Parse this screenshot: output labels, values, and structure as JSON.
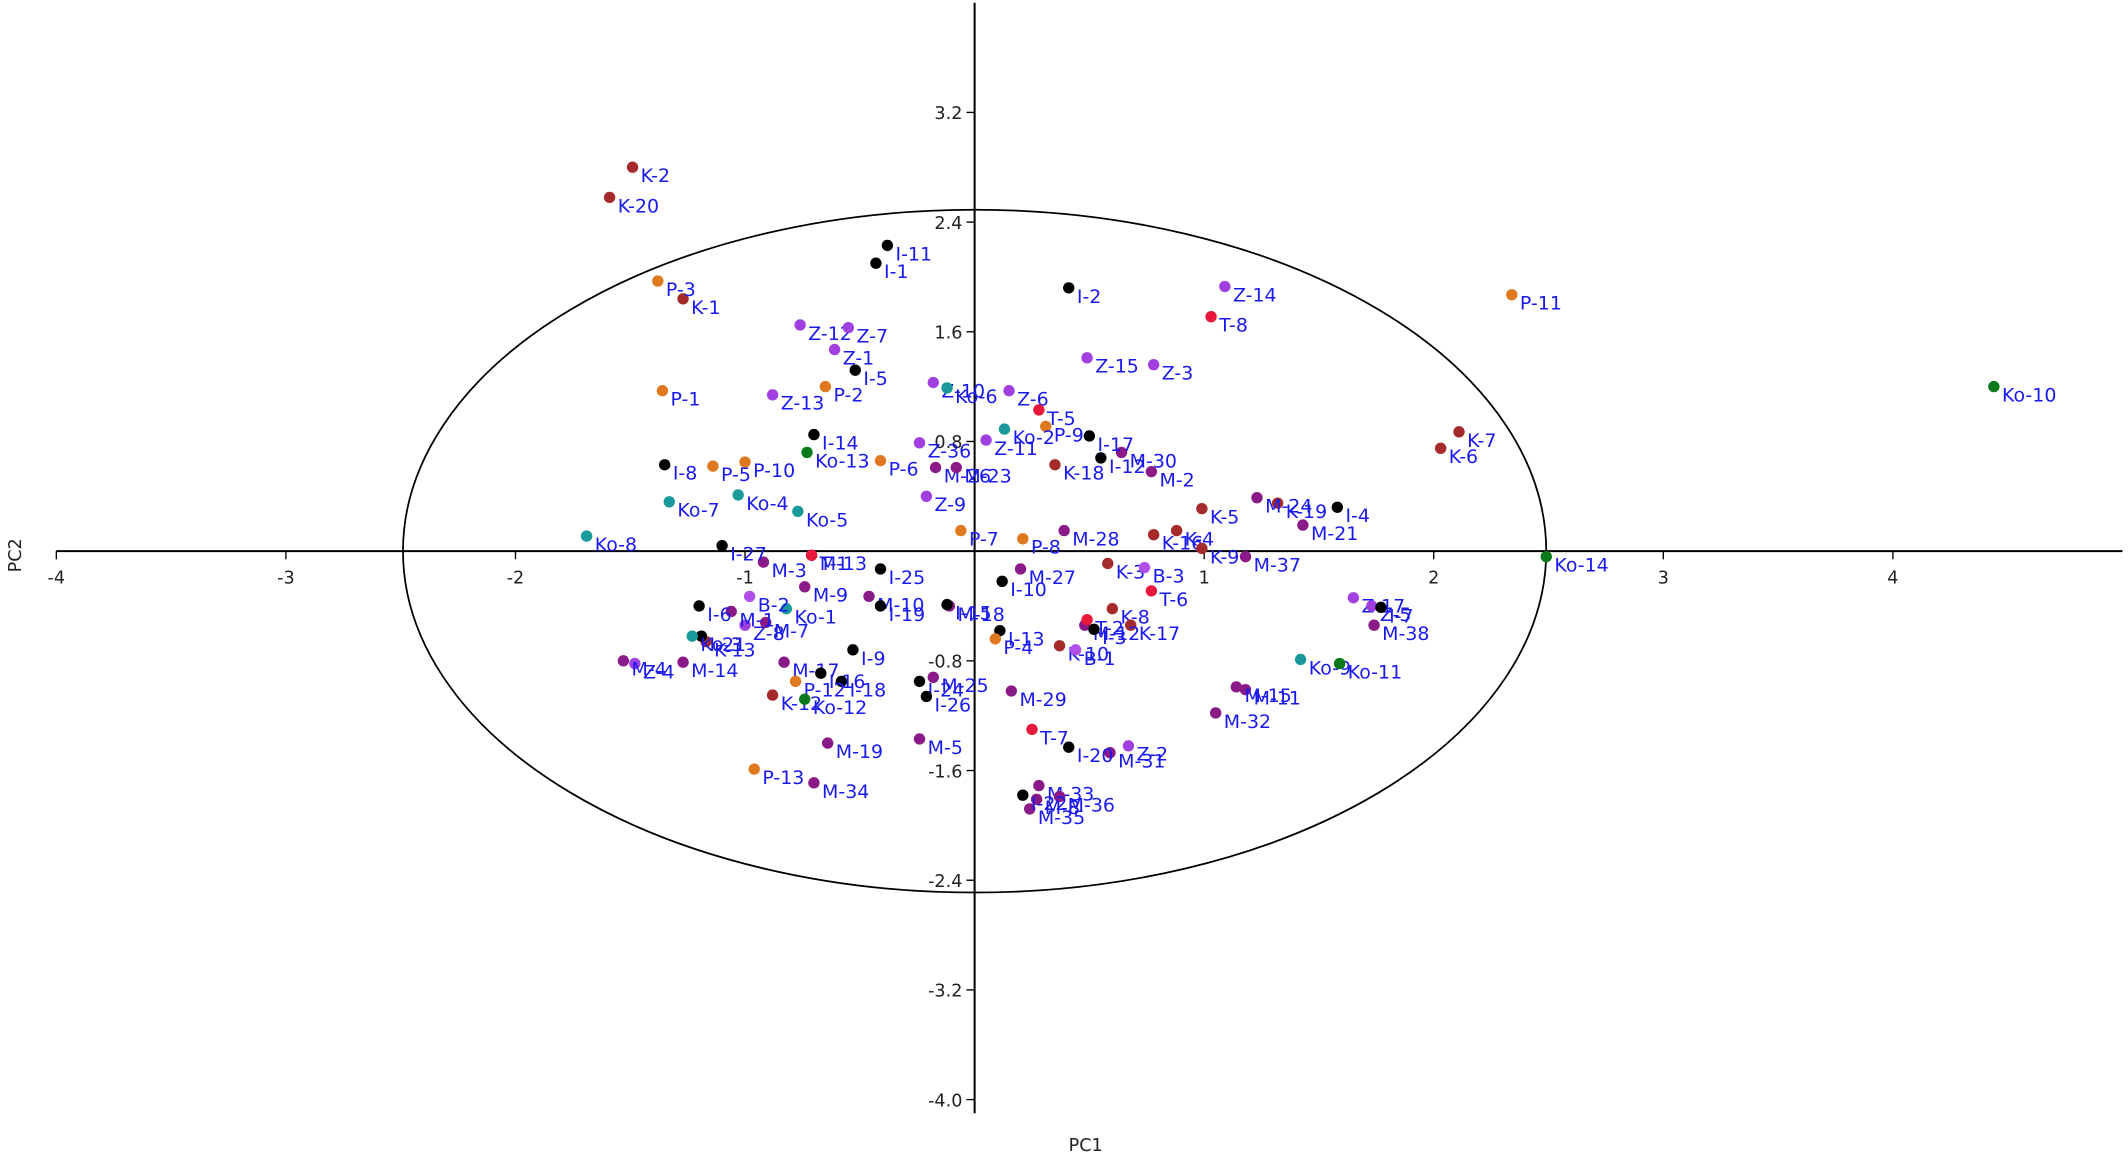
{
  "chart_data": {
    "type": "scatter",
    "x_label": "PC1",
    "y_label": "PC2",
    "xlim": [
      -4,
      5
    ],
    "ylim": [
      -4.1,
      4
    ],
    "xticks": [
      -4,
      -3,
      -2,
      -1,
      1,
      2,
      3,
      4
    ],
    "yticks": [
      {
        "value": -4,
        "label": "-4.0"
      },
      -3.2,
      -2.4,
      -1.6,
      -0.8,
      0.8,
      1.6,
      2.4,
      3.2
    ],
    "ellipse": {
      "rx": 2.49,
      "ry": 2.49
    },
    "series": [
      {
        "color": "#a52a2a",
        "labels": [
          "K-2",
          "K-20",
          "K-1",
          "K-7",
          "K-6",
          "K-19",
          "K-5",
          "K-4",
          "K-16",
          "K-9",
          "K-3",
          "K-8",
          "K-17",
          "K-18",
          "K-10",
          "K-12",
          "K-13"
        ],
        "x": [
          -1.49,
          -1.59,
          -1.27,
          2.11,
          2.03,
          1.32,
          0.99,
          0.88,
          0.78,
          0.99,
          0.58,
          0.6,
          0.68,
          0.35,
          0.37,
          -0.88,
          -1.17
        ],
        "y": [
          2.8,
          2.58,
          1.84,
          0.87,
          0.75,
          0.35,
          0.31,
          0.15,
          0.12,
          0.02,
          -0.09,
          -0.42,
          -0.54,
          0.63,
          -0.69,
          -1.05,
          -0.66
        ]
      },
      {
        "color": "#a040e0",
        "labels": [
          "Z-14",
          "Z-15",
          "Z-3",
          "Z-12",
          "Z-7",
          "Z-1",
          "Z-10",
          "Z-13",
          "Z-6",
          "Z-36",
          "Z-11",
          "Z-9",
          "Z-17",
          "Z-5",
          "Z-2",
          "Z-4",
          "Z-8"
        ],
        "x": [
          1.09,
          0.49,
          0.78,
          -0.76,
          -0.55,
          -0.61,
          -0.18,
          -0.88,
          0.15,
          -0.24,
          0.05,
          -0.21,
          1.65,
          1.73,
          0.67,
          -1.48,
          -1.0
        ],
        "y": [
          1.93,
          1.41,
          1.36,
          1.65,
          1.63,
          1.47,
          1.23,
          1.14,
          1.17,
          0.79,
          0.81,
          0.4,
          -0.34,
          -0.4,
          -1.42,
          -0.82,
          -0.54
        ]
      },
      {
        "color": "#8b1a89",
        "labels": [
          "M-30",
          "M-2",
          "M-24",
          "M-21",
          "M-37",
          "M-28",
          "M-27",
          "M-26",
          "M-23",
          "M-38",
          "M-11",
          "M-15",
          "M-32",
          "M-29",
          "M-12",
          "M-18",
          "M-13",
          "M-3",
          "M-9",
          "M-7",
          "M-1",
          "M-4",
          "M-14",
          "M-17",
          "M-10",
          "M-25",
          "M-5",
          "M-19",
          "M-34",
          "M-31",
          "M-33",
          "M-36",
          "M-8",
          "M-35"
        ],
        "x": [
          0.64,
          0.77,
          1.23,
          1.43,
          1.18,
          0.39,
          0.2,
          -0.17,
          -0.08,
          1.74,
          1.18,
          1.14,
          1.05,
          0.16,
          0.48,
          -0.11,
          -0.71,
          -0.92,
          -0.74,
          -0.91,
          -1.06,
          -1.53,
          -1.27,
          -0.83,
          -0.46,
          -0.18,
          -0.24,
          -0.64,
          -0.7,
          0.59,
          0.28,
          0.37,
          0.27,
          0.24
        ],
        "y": [
          0.72,
          0.58,
          0.39,
          0.19,
          -0.04,
          0.15,
          -0.13,
          0.61,
          0.61,
          -0.54,
          -1.01,
          -0.99,
          -1.18,
          -1.02,
          -0.54,
          -0.4,
          -0.03,
          -0.08,
          -0.26,
          -0.52,
          -0.44,
          -0.8,
          -0.81,
          -0.81,
          -0.33,
          -0.92,
          -1.37,
          -1.4,
          -1.69,
          -1.47,
          -1.71,
          -1.79,
          -1.81,
          -1.88
        ]
      },
      {
        "color": "#000000",
        "labels": [
          "I-11",
          "I-1",
          "I-2",
          "I-5",
          "I-14",
          "I-8",
          "I-17",
          "I-12",
          "I-4",
          "I-27",
          "I-25",
          "I-10",
          "I-6",
          "I-13",
          "I-15",
          "I-3",
          "I-9",
          "I-16",
          "I-18",
          "I-24",
          "I-26",
          "I-19",
          "I-20",
          "I-22",
          "I-21",
          "I-7"
        ],
        "x": [
          -0.38,
          -0.43,
          0.41,
          -0.52,
          -0.7,
          -1.35,
          0.5,
          0.55,
          1.58,
          -1.1,
          -0.41,
          0.12,
          -1.2,
          0.11,
          -0.12,
          0.52,
          -0.53,
          -0.67,
          -0.58,
          -0.24,
          -0.21,
          -0.41,
          0.41,
          0.21,
          -1.19,
          1.77
        ],
        "y": [
          2.23,
          2.1,
          1.92,
          1.32,
          0.85,
          0.63,
          0.84,
          0.68,
          0.32,
          0.04,
          -0.13,
          -0.22,
          -0.4,
          -0.58,
          -0.39,
          -0.57,
          -0.72,
          -0.89,
          -0.95,
          -0.95,
          -1.06,
          -0.4,
          -1.43,
          -1.78,
          -0.62,
          -0.41
        ]
      },
      {
        "color": "#e07820",
        "labels": [
          "P-3",
          "P-11",
          "P-1",
          "P-2",
          "P-5",
          "P-10",
          "P-6",
          "P-9",
          "P-7",
          "P-8",
          "P-4",
          "P-12",
          "P-13"
        ],
        "x": [
          -1.38,
          2.34,
          -1.36,
          -0.65,
          -1.14,
          -1.0,
          -0.41,
          0.31,
          -0.06,
          0.21,
          0.09,
          -0.78,
          -0.96
        ],
        "y": [
          1.97,
          1.87,
          1.17,
          1.2,
          0.62,
          0.65,
          0.66,
          0.91,
          0.15,
          0.09,
          -0.64,
          -0.95,
          -1.59
        ]
      },
      {
        "color": "#1a9a9a",
        "labels": [
          "Ko-6",
          "Ko-2",
          "Ko-4",
          "Ko-5",
          "Ko-7",
          "Ko-8",
          "Ko-9",
          "Ko-3",
          "Ko-1"
        ],
        "x": [
          -0.12,
          0.13,
          -1.03,
          -0.77,
          -1.33,
          -1.69,
          1.42,
          -1.23,
          -0.82
        ],
        "y": [
          1.19,
          0.89,
          0.41,
          0.29,
          0.36,
          0.11,
          -0.79,
          -0.62,
          -0.42
        ]
      },
      {
        "color": "#0a7a1a",
        "labels": [
          "Ko-13",
          "Ko-10",
          "Ko-14",
          "Ko-11",
          "Ko-12"
        ],
        "x": [
          -0.73,
          4.44,
          2.49,
          1.59,
          -0.74
        ],
        "y": [
          0.72,
          1.2,
          -0.04,
          -0.82,
          -1.08
        ]
      },
      {
        "color": "#e8183a",
        "labels": [
          "T-8",
          "T-5",
          "T-1",
          "T-6",
          "T-2",
          "T-7"
        ],
        "x": [
          1.03,
          0.28,
          -0.71,
          0.77,
          0.49,
          0.25
        ],
        "y": [
          1.71,
          1.03,
          -0.03,
          -0.29,
          -0.5,
          -1.3
        ]
      },
      {
        "color": "#b050e8",
        "labels": [
          "B-2",
          "B-3",
          "B-1"
        ],
        "x": [
          -0.98,
          0.74,
          0.44
        ],
        "y": [
          -0.33,
          -0.12,
          -0.72
        ]
      }
    ]
  }
}
